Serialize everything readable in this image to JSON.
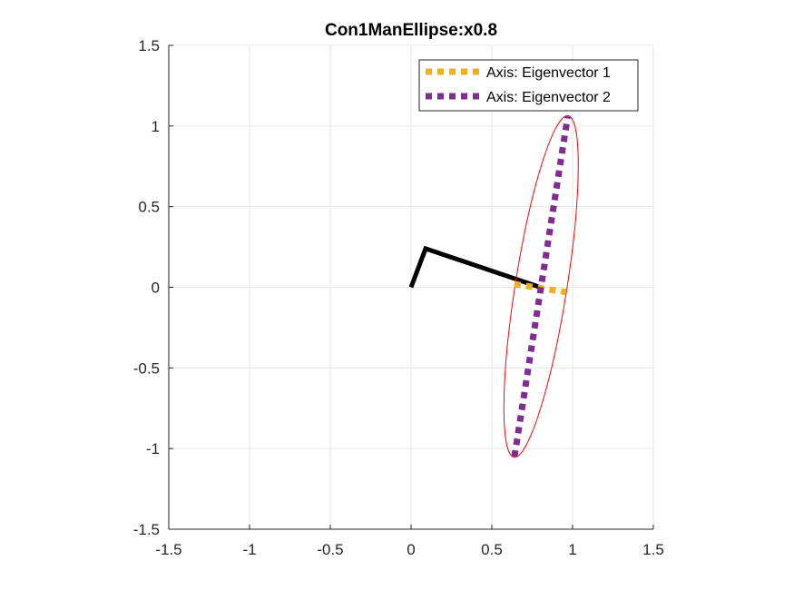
{
  "chart_data": {
    "type": "line",
    "title": "Con1ManEllipse:x0.8",
    "xlabel": "",
    "ylabel": "",
    "xlim": [
      -1.5,
      1.5
    ],
    "ylim": [
      -1.5,
      1.5
    ],
    "x_ticks": [
      "-1.5",
      "-1",
      "-0.5",
      "0",
      "0.5",
      "1",
      "1.5"
    ],
    "y_ticks": [
      "1.5",
      "1",
      "0.5",
      "0",
      "-0.5",
      "-1",
      "-1.5"
    ],
    "grid": true,
    "legend_position": "top-right",
    "series": [
      {
        "name": "Axis: Eigenvector 1",
        "style": "dotted-thick",
        "color": "#EDB120",
        "x": [
          0.64,
          0.96
        ],
        "y": [
          0.02,
          -0.03
        ]
      },
      {
        "name": "Axis: Eigenvector 2",
        "style": "dotted-thick",
        "color": "#7E2F8E",
        "x": [
          0.64,
          0.97
        ],
        "y": [
          -1.05,
          1.06
        ]
      }
    ],
    "unlabeled_lines": [
      {
        "role": "link-arm",
        "color": "#000000",
        "x": [
          0,
          0.09,
          0.8
        ],
        "y": [
          0,
          0.24,
          0
        ]
      }
    ],
    "ellipse": {
      "color": "#FF0000",
      "center": [
        0.805,
        0.005
      ],
      "semi_major": 1.07,
      "semi_minor": 0.16,
      "angle_deg": 81
    }
  }
}
